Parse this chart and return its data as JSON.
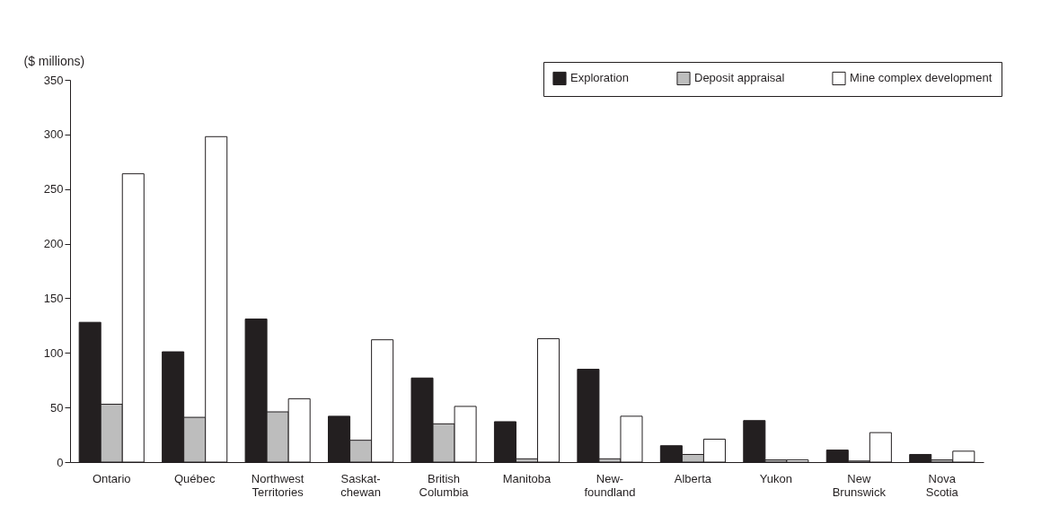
{
  "chart_data": {
    "type": "bar",
    "ylabel": "($ millions)",
    "categories": [
      "Ontario",
      "Québec",
      "Northwest\nTerritories",
      "Saskat-\nchewan",
      "British\nColumbia",
      "Manitoba",
      "New-\nfoundland",
      "Alberta",
      "Yukon",
      "New\nBrunswick",
      "Nova\nScotia"
    ],
    "series": [
      {
        "name": "Exploration",
        "color": "#231f20",
        "values": [
          128,
          101,
          131,
          42,
          77,
          37,
          85,
          15,
          38,
          11,
          7
        ]
      },
      {
        "name": "Deposit appraisal",
        "color": "#bdbdbd",
        "values": [
          53,
          41,
          46,
          20,
          35,
          3,
          3,
          7,
          2,
          1,
          2
        ]
      },
      {
        "name": "Mine complex development",
        "color": "#ffffff",
        "values": [
          264,
          298,
          58,
          112,
          51,
          113,
          42,
          21,
          2,
          27,
          10
        ]
      }
    ],
    "ylim": [
      0,
      350
    ],
    "yticks": [
      0,
      50,
      100,
      150,
      200,
      250,
      300,
      350
    ],
    "grid": false,
    "legend": "top right"
  }
}
